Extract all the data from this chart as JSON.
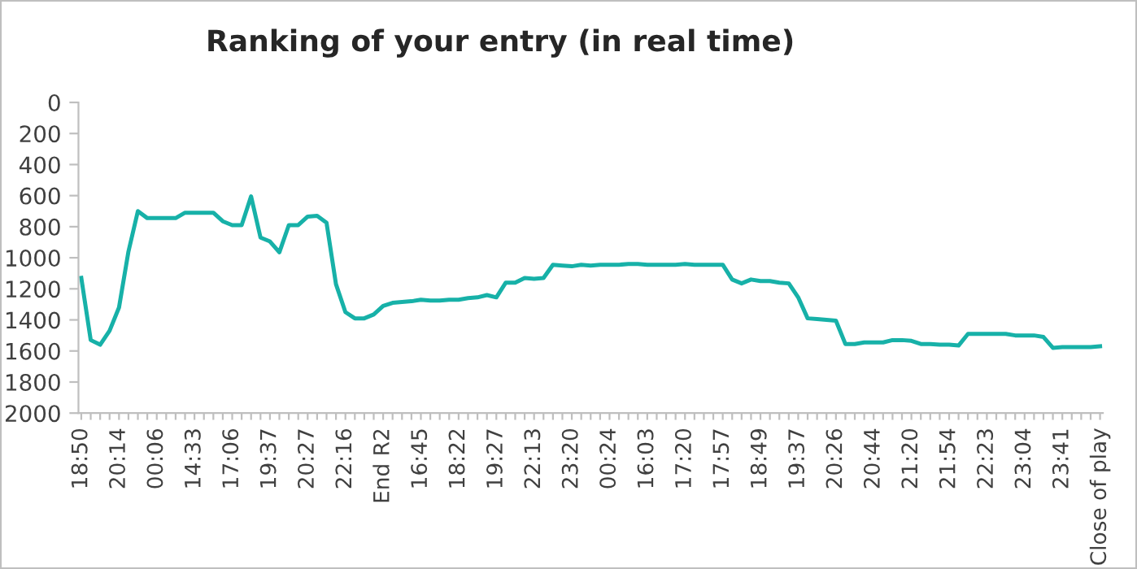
{
  "chart_data": {
    "type": "line",
    "title": "Ranking of your entry (in real time)",
    "categories": [
      "18:50",
      null,
      null,
      null,
      "20:14",
      null,
      null,
      null,
      "00:06",
      null,
      null,
      null,
      "14:33",
      null,
      null,
      null,
      "17:06",
      null,
      null,
      null,
      "19:37",
      null,
      null,
      null,
      "20:27",
      null,
      null,
      null,
      "22:16",
      null,
      null,
      null,
      "End R2",
      null,
      null,
      null,
      "16:45",
      null,
      null,
      null,
      "18:22",
      null,
      null,
      null,
      "19:27",
      null,
      null,
      null,
      "22:13",
      null,
      null,
      null,
      "23:20",
      null,
      null,
      null,
      "00:24",
      null,
      null,
      null,
      "16:03",
      null,
      null,
      null,
      "17:20",
      null,
      null,
      null,
      "17:57",
      null,
      null,
      null,
      "18:49",
      null,
      null,
      null,
      "19:37",
      null,
      null,
      null,
      "20:26",
      null,
      null,
      null,
      "20:44",
      null,
      null,
      null,
      "21:20",
      null,
      null,
      null,
      "21:54",
      null,
      null,
      null,
      "22:23",
      null,
      null,
      null,
      "23:04",
      null,
      null,
      null,
      "23:41",
      null,
      null,
      null,
      "Close of play"
    ],
    "series": [
      {
        "color": "#17b1a8",
        "values": [
          1130,
          1530,
          1560,
          1470,
          1320,
          960,
          700,
          745,
          745,
          745,
          745,
          710,
          710,
          710,
          710,
          765,
          790,
          790,
          605,
          870,
          895,
          965,
          790,
          790,
          735,
          730,
          775,
          1170,
          1350,
          1390,
          1390,
          1365,
          1310,
          1290,
          1285,
          1280,
          1270,
          1275,
          1275,
          1270,
          1270,
          1260,
          1255,
          1240,
          1255,
          1160,
          1160,
          1130,
          1135,
          1130,
          1045,
          1050,
          1055,
          1045,
          1050,
          1045,
          1045,
          1045,
          1040,
          1040,
          1045,
          1045,
          1045,
          1045,
          1040,
          1045,
          1045,
          1045,
          1045,
          1140,
          1165,
          1140,
          1150,
          1150,
          1160,
          1165,
          1255,
          1390,
          1395,
          1400,
          1405,
          1555,
          1555,
          1545,
          1545,
          1545,
          1530,
          1530,
          1535,
          1555,
          1555,
          1560,
          1560,
          1565,
          1490,
          1490,
          1490,
          1490,
          1490,
          1500,
          1500,
          1500,
          1510,
          1580,
          1575,
          1575,
          1575,
          1575,
          1570
        ]
      }
    ],
    "ylim": [
      2000,
      0
    ],
    "yticks": [
      0,
      200,
      400,
      600,
      800,
      1000,
      1200,
      1400,
      1600,
      1800,
      2000
    ],
    "grid": false,
    "legend": false,
    "marker": "none",
    "line_style": "solid"
  }
}
